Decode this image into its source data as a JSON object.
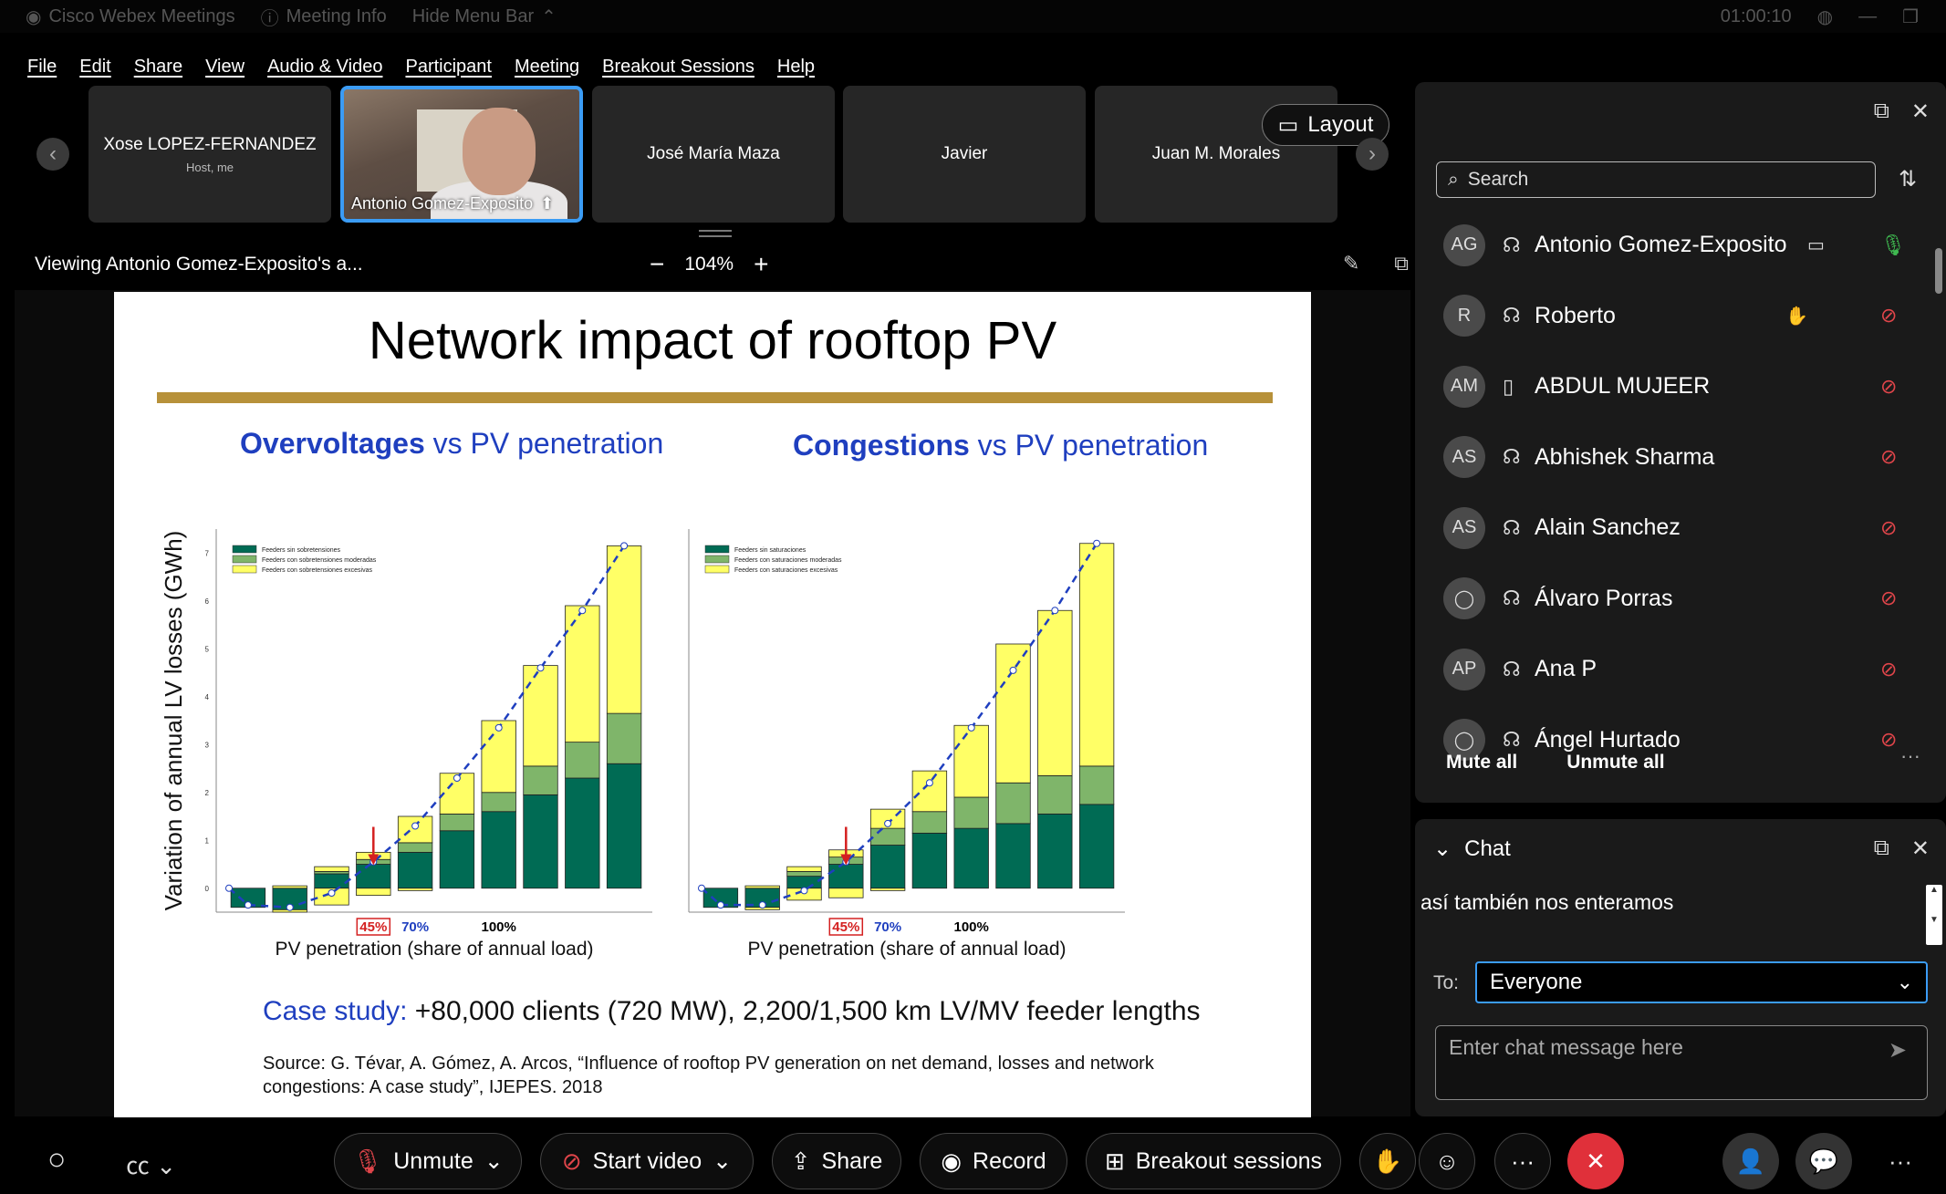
{
  "titlebar": {
    "app_name": "Cisco Webex Meetings",
    "meeting_info": "Meeting Info",
    "hide_menu": "Hide Menu Bar",
    "timer": "01:00:10"
  },
  "menu": [
    "File",
    "Edit",
    "Share",
    "View",
    "Audio & Video",
    "Participant",
    "Meeting",
    "Breakout Sessions",
    "Help"
  ],
  "filmstrip": {
    "tiles": [
      {
        "name": "Xose LOPEZ-FERNANDEZ",
        "sub": "Host, me"
      },
      {
        "name": "Antonio Gomez-Exposito",
        "sub": ""
      },
      {
        "name": "José María Maza",
        "sub": ""
      },
      {
        "name": "Javier",
        "sub": ""
      },
      {
        "name": "Juan M. Morales",
        "sub": ""
      }
    ],
    "layout_label": "Layout"
  },
  "viewbar": {
    "viewing": "Viewing Antonio Gomez-Exposito's a...",
    "zoom": "104%",
    "minus": "−",
    "plus": "+"
  },
  "slide": {
    "title": "Network impact of rooftop PV",
    "left_title_bold": "Overvoltages",
    "left_title_rest": " vs PV penetration",
    "right_title_bold": "Congestions",
    "right_title_rest": " vs PV penetration",
    "case_label": "Case study:",
    "case_text": " +80,000 clients (720 MW), 2,200/1,500 km LV/MV feeder lengths",
    "source": "Source: G. Tévar, A. Gómez, A. Arcos, “Influence of rooftop PV generation on net demand, losses and network congestions: A case study”, IJEPES. 2018"
  },
  "chart_data": [
    {
      "type": "bar",
      "title": "Overvoltages vs PV penetration",
      "ylabel": "Variation of annual LV losses (GWh)",
      "xlabel": "PV penetration (share of annual load)",
      "ylim": [
        -0.5,
        7.5
      ],
      "yticks": [
        0,
        1,
        2,
        3,
        4,
        5,
        6,
        7
      ],
      "stacked": true,
      "legend_placement": "top-left",
      "legend": [
        "Feeders sin sobretensiones",
        "Feeders con sobretensiones moderadas",
        "Feeders con sobretensiones excesivas"
      ],
      "annotations": [
        {
          "text": "45%",
          "bar": 3,
          "color": "#d42020",
          "arrow": true
        },
        {
          "text": "70%",
          "bar": 4,
          "color": "#1f3fbf"
        },
        {
          "text": "100%",
          "bar": 6,
          "color": "#000000"
        }
      ],
      "series": [
        {
          "name": "Feeders sin sobretensiones",
          "color": "#006b54",
          "values": [
            -0.4,
            -0.45,
            0.3,
            0.5,
            0.75,
            1.2,
            1.6,
            1.95,
            2.3,
            2.6
          ]
        },
        {
          "name": "Feeders con sobretensiones moderadas",
          "color": "#7fb56a",
          "values": [
            0,
            0,
            0.05,
            0.1,
            0.2,
            0.35,
            0.4,
            0.6,
            0.75,
            1.05
          ]
        },
        {
          "name": "Feeders con sobretensiones excesivas",
          "color": "#ffff66",
          "values": [
            0,
            0.05,
            0.1,
            0.15,
            0.55,
            0.85,
            1.5,
            2.1,
            2.85,
            3.5
          ]
        }
      ],
      "negative_yellow": [
        0,
        -0.05,
        -0.35,
        -0.15,
        -0.05,
        0,
        0,
        0,
        0,
        0
      ],
      "trend": [
        0,
        -0.35,
        -0.4,
        -0.1,
        0.55,
        1.3,
        2.3,
        3.35,
        4.6,
        5.8,
        7.15
      ]
    },
    {
      "type": "bar",
      "title": "Congestions vs PV penetration",
      "xlabel": "PV penetration (share of annual load)",
      "ylim": [
        -0.5,
        7.5
      ],
      "stacked": true,
      "legend_placement": "top-left",
      "legend": [
        "Feeders sin saturaciones",
        "Feeders con saturaciones moderadas",
        "Feeders con saturaciones excesivas"
      ],
      "annotations": [
        {
          "text": "45%",
          "bar": 3,
          "color": "#d42020",
          "arrow": true
        },
        {
          "text": "70%",
          "bar": 4,
          "color": "#1f3fbf"
        },
        {
          "text": "100%",
          "bar": 6,
          "color": "#000000"
        }
      ],
      "series": [
        {
          "name": "Feeders sin saturaciones",
          "color": "#006b54",
          "values": [
            -0.4,
            -0.4,
            0.25,
            0.5,
            0.9,
            1.15,
            1.25,
            1.35,
            1.55,
            1.75
          ]
        },
        {
          "name": "Feeders con saturaciones moderadas",
          "color": "#7fb56a",
          "values": [
            0,
            0,
            0.1,
            0.15,
            0.35,
            0.45,
            0.65,
            0.85,
            0.8,
            0.8
          ]
        },
        {
          "name": "Feeders con saturaciones excesivas",
          "color": "#ffff66",
          "values": [
            0,
            0.05,
            0.1,
            0.15,
            0.4,
            0.85,
            1.5,
            2.9,
            3.45,
            4.65
          ]
        }
      ],
      "negative_yellow": [
        0,
        -0.05,
        -0.25,
        -0.2,
        -0.05,
        0,
        0,
        0,
        0,
        0
      ],
      "trend": [
        0,
        -0.35,
        -0.35,
        -0.05,
        0.55,
        1.35,
        2.2,
        3.35,
        4.55,
        5.8,
        7.2
      ]
    }
  ],
  "participants": {
    "search_placeholder": "Search",
    "list": [
      {
        "initials": "AG",
        "name": "Antonio Gomez-Exposito",
        "extra": "video",
        "mic": "on",
        "device": "headset"
      },
      {
        "initials": "R",
        "name": "Roberto",
        "extra": "hand",
        "mic": "muted",
        "device": "headset"
      },
      {
        "initials": "AM",
        "name": "ABDUL MUJEER",
        "extra": "",
        "mic": "muted",
        "device": "phone"
      },
      {
        "initials": "AS",
        "name": "Abhishek Sharma",
        "extra": "",
        "mic": "muted",
        "device": "headset"
      },
      {
        "initials": "AS",
        "name": "Alain Sanchez",
        "extra": "",
        "mic": "muted",
        "device": "headset"
      },
      {
        "initials": "",
        "name": "Álvaro Porras",
        "extra": "",
        "mic": "muted",
        "device": "headset"
      },
      {
        "initials": "AP",
        "name": "Ana P",
        "extra": "",
        "mic": "muted",
        "device": "headset"
      },
      {
        "initials": "",
        "name": "Ángel Hurtado",
        "extra": "",
        "mic": "muted",
        "device": "headset"
      }
    ],
    "mute_all": "Mute all",
    "unmute_all": "Unmute all"
  },
  "chat": {
    "title": "Chat",
    "message": "así también nos enteramos",
    "to_label": "To:",
    "to_value": "Everyone",
    "placeholder": "Enter chat message here"
  },
  "controls": {
    "unmute": "Unmute",
    "start_video": "Start video",
    "share": "Share",
    "record": "Record",
    "breakout": "Breakout sessions"
  },
  "colors": {
    "accent": "#3b9cf5",
    "danger": "#e0303a",
    "muted_icon": "#e0454a",
    "slide_blue": "#1f3fbf",
    "gold": "#b7913a"
  }
}
